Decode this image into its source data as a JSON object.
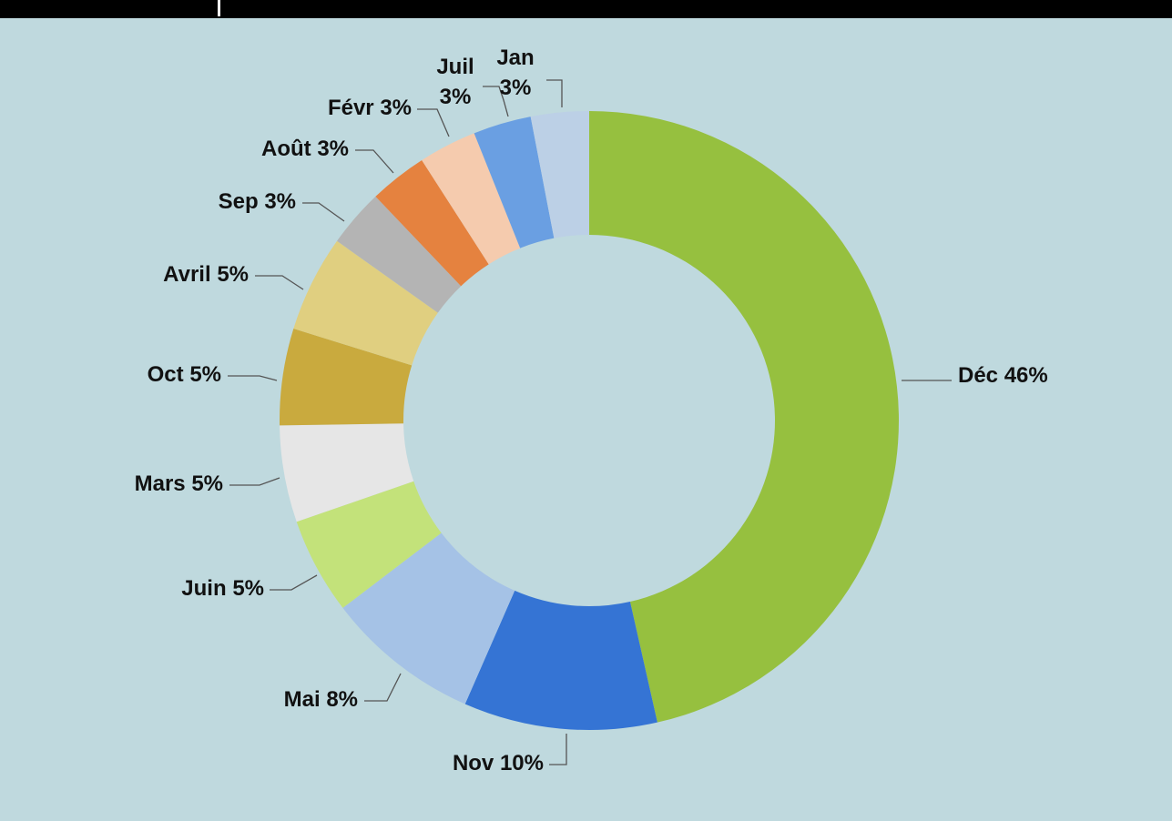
{
  "chart_data": {
    "type": "donut",
    "categories": [
      "Déc",
      "Nov",
      "Mai",
      "Juin",
      "Mars",
      "Oct",
      "Avril",
      "Sep",
      "Août",
      "Févr",
      "Juil",
      "Jan"
    ],
    "values": [
      46,
      10,
      8,
      5,
      5,
      5,
      5,
      3,
      3,
      3,
      3,
      3
    ],
    "value_labels": [
      "46%",
      "10%",
      "8%",
      "5%",
      "5%",
      "5%",
      "5%",
      "3%",
      "3%",
      "3%",
      "3%",
      "3%"
    ],
    "colors": [
      "#96c03f",
      "#3574d4",
      "#a5c2e6",
      "#c3e27a",
      "#e6e6e6",
      "#c9aa3e",
      "#e0cf80",
      "#b4b4b4",
      "#e5823f",
      "#f5cbae",
      "#6a9fe2",
      "#bcd0e6"
    ]
  }
}
